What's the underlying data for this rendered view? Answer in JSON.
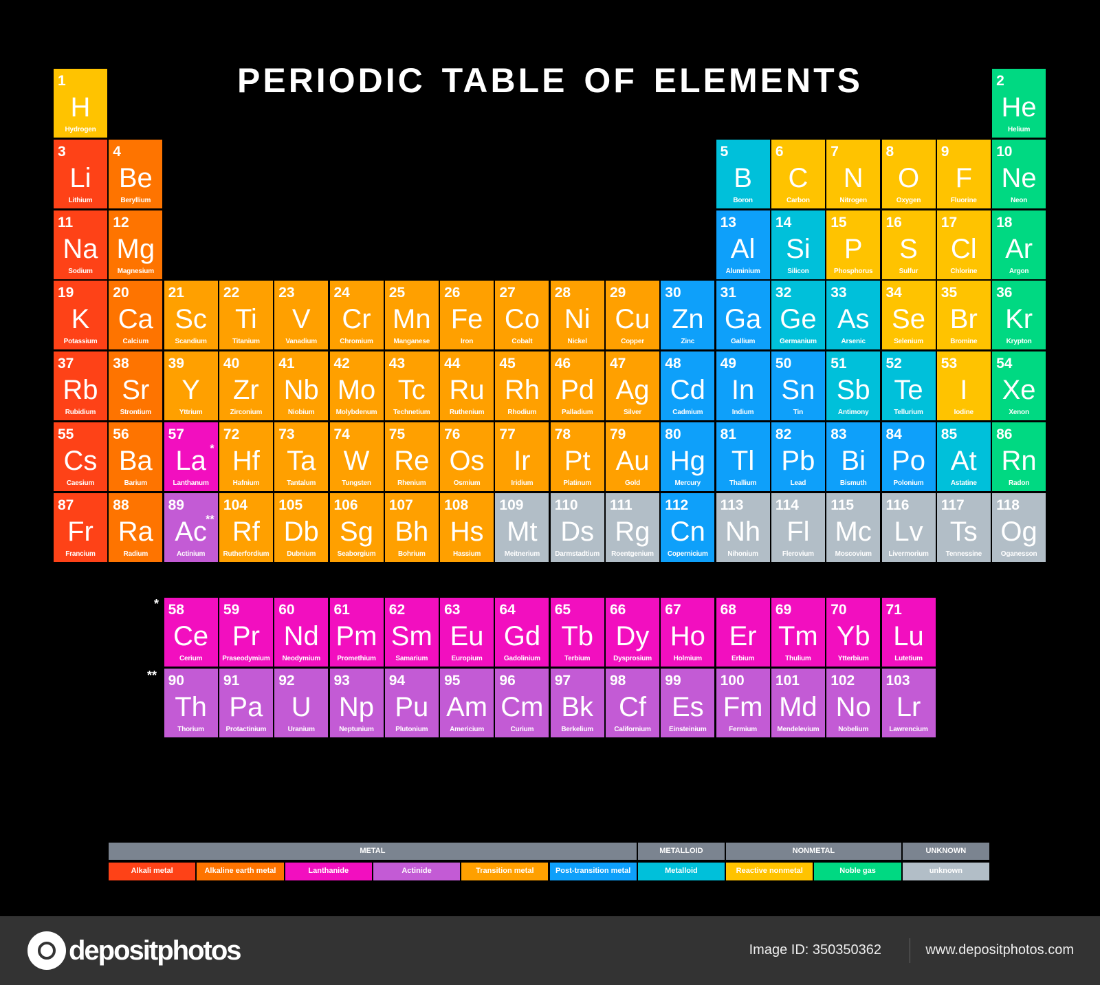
{
  "title": "PERIODIC TABLE OF ELEMENTS",
  "colors": {
    "alkali": "#fe4217",
    "alkaline": "#fe7400",
    "lanthanide": "#f20fbf",
    "actinide": "#c35bd5",
    "transition": "#ffa000",
    "posttransition": "#0ea0fa",
    "metalloid": "#00c0da",
    "nonmetal": "#ffc300",
    "noble": "#00d982",
    "unknown": "#b2bec7",
    "legend_header": "#7b8490"
  },
  "markers": {
    "lanthanum": "*",
    "actinium": "**"
  },
  "elements": [
    [
      1,
      "H",
      "Hydrogen",
      "nonmetal"
    ],
    [
      2,
      "He",
      "Helium",
      "noble"
    ],
    [
      3,
      "Li",
      "Lithium",
      "alkali"
    ],
    [
      4,
      "Be",
      "Beryllium",
      "alkaline"
    ],
    [
      5,
      "B",
      "Boron",
      "metalloid"
    ],
    [
      6,
      "C",
      "Carbon",
      "nonmetal"
    ],
    [
      7,
      "N",
      "Nitrogen",
      "nonmetal"
    ],
    [
      8,
      "O",
      "Oxygen",
      "nonmetal"
    ],
    [
      9,
      "F",
      "Fluorine",
      "nonmetal"
    ],
    [
      10,
      "Ne",
      "Neon",
      "noble"
    ],
    [
      11,
      "Na",
      "Sodium",
      "alkali"
    ],
    [
      12,
      "Mg",
      "Magnesium",
      "alkaline"
    ],
    [
      13,
      "Al",
      "Aluminium",
      "posttransition"
    ],
    [
      14,
      "Si",
      "Silicon",
      "metalloid"
    ],
    [
      15,
      "P",
      "Phosphorus",
      "nonmetal"
    ],
    [
      16,
      "S",
      "Sulfur",
      "nonmetal"
    ],
    [
      17,
      "Cl",
      "Chlorine",
      "nonmetal"
    ],
    [
      18,
      "Ar",
      "Argon",
      "noble"
    ],
    [
      19,
      "K",
      "Potassium",
      "alkali"
    ],
    [
      20,
      "Ca",
      "Calcium",
      "alkaline"
    ],
    [
      21,
      "Sc",
      "Scandium",
      "transition"
    ],
    [
      22,
      "Ti",
      "Titanium",
      "transition"
    ],
    [
      23,
      "V",
      "Vanadium",
      "transition"
    ],
    [
      24,
      "Cr",
      "Chromium",
      "transition"
    ],
    [
      25,
      "Mn",
      "Manganese",
      "transition"
    ],
    [
      26,
      "Fe",
      "Iron",
      "transition"
    ],
    [
      27,
      "Co",
      "Cobalt",
      "transition"
    ],
    [
      28,
      "Ni",
      "Nickel",
      "transition"
    ],
    [
      29,
      "Cu",
      "Copper",
      "transition"
    ],
    [
      30,
      "Zn",
      "Zinc",
      "posttransition"
    ],
    [
      31,
      "Ga",
      "Gallium",
      "posttransition"
    ],
    [
      32,
      "Ge",
      "Germanium",
      "metalloid"
    ],
    [
      33,
      "As",
      "Arsenic",
      "metalloid"
    ],
    [
      34,
      "Se",
      "Selenium",
      "nonmetal"
    ],
    [
      35,
      "Br",
      "Bromine",
      "nonmetal"
    ],
    [
      36,
      "Kr",
      "Krypton",
      "noble"
    ],
    [
      37,
      "Rb",
      "Rubidium",
      "alkali"
    ],
    [
      38,
      "Sr",
      "Strontium",
      "alkaline"
    ],
    [
      39,
      "Y",
      "Yttrium",
      "transition"
    ],
    [
      40,
      "Zr",
      "Zirconium",
      "transition"
    ],
    [
      41,
      "Nb",
      "Niobium",
      "transition"
    ],
    [
      42,
      "Mo",
      "Molybdenum",
      "transition"
    ],
    [
      43,
      "Tc",
      "Technetium",
      "transition"
    ],
    [
      44,
      "Ru",
      "Ruthenium",
      "transition"
    ],
    [
      45,
      "Rh",
      "Rhodium",
      "transition"
    ],
    [
      46,
      "Pd",
      "Palladium",
      "transition"
    ],
    [
      47,
      "Ag",
      "Silver",
      "transition"
    ],
    [
      48,
      "Cd",
      "Cadmium",
      "posttransition"
    ],
    [
      49,
      "In",
      "Indium",
      "posttransition"
    ],
    [
      50,
      "Sn",
      "Tin",
      "posttransition"
    ],
    [
      51,
      "Sb",
      "Antimony",
      "metalloid"
    ],
    [
      52,
      "Te",
      "Tellurium",
      "metalloid"
    ],
    [
      53,
      "I",
      "Iodine",
      "nonmetal"
    ],
    [
      54,
      "Xe",
      "Xenon",
      "noble"
    ],
    [
      55,
      "Cs",
      "Caesium",
      "alkali"
    ],
    [
      56,
      "Ba",
      "Barium",
      "alkaline"
    ],
    [
      57,
      "La",
      "Lanthanum",
      "lanthanide"
    ],
    [
      58,
      "Ce",
      "Cerium",
      "lanthanide"
    ],
    [
      59,
      "Pr",
      "Praseodymium",
      "lanthanide"
    ],
    [
      60,
      "Nd",
      "Neodymium",
      "lanthanide"
    ],
    [
      61,
      "Pm",
      "Promethium",
      "lanthanide"
    ],
    [
      62,
      "Sm",
      "Samarium",
      "lanthanide"
    ],
    [
      63,
      "Eu",
      "Europium",
      "lanthanide"
    ],
    [
      64,
      "Gd",
      "Gadolinium",
      "lanthanide"
    ],
    [
      65,
      "Tb",
      "Terbium",
      "lanthanide"
    ],
    [
      66,
      "Dy",
      "Dysprosium",
      "lanthanide"
    ],
    [
      67,
      "Ho",
      "Holmium",
      "lanthanide"
    ],
    [
      68,
      "Er",
      "Erbium",
      "lanthanide"
    ],
    [
      69,
      "Tm",
      "Thulium",
      "lanthanide"
    ],
    [
      70,
      "Yb",
      "Ytterbium",
      "lanthanide"
    ],
    [
      71,
      "Lu",
      "Lutetium",
      "lanthanide"
    ],
    [
      72,
      "Hf",
      "Hafnium",
      "transition"
    ],
    [
      73,
      "Ta",
      "Tantalum",
      "transition"
    ],
    [
      74,
      "W",
      "Tungsten",
      "transition"
    ],
    [
      75,
      "Re",
      "Rhenium",
      "transition"
    ],
    [
      76,
      "Os",
      "Osmium",
      "transition"
    ],
    [
      77,
      "Ir",
      "Iridium",
      "transition"
    ],
    [
      78,
      "Pt",
      "Platinum",
      "transition"
    ],
    [
      79,
      "Au",
      "Gold",
      "transition"
    ],
    [
      80,
      "Hg",
      "Mercury",
      "posttransition"
    ],
    [
      81,
      "Tl",
      "Thallium",
      "posttransition"
    ],
    [
      82,
      "Pb",
      "Lead",
      "posttransition"
    ],
    [
      83,
      "Bi",
      "Bismuth",
      "posttransition"
    ],
    [
      84,
      "Po",
      "Polonium",
      "posttransition"
    ],
    [
      85,
      "At",
      "Astatine",
      "metalloid"
    ],
    [
      86,
      "Rn",
      "Radon",
      "noble"
    ],
    [
      87,
      "Fr",
      "Francium",
      "alkali"
    ],
    [
      88,
      "Ra",
      "Radium",
      "alkaline"
    ],
    [
      89,
      "Ac",
      "Actinium",
      "actinide"
    ],
    [
      90,
      "Th",
      "Thorium",
      "actinide"
    ],
    [
      91,
      "Pa",
      "Protactinium",
      "actinide"
    ],
    [
      92,
      "U",
      "Uranium",
      "actinide"
    ],
    [
      93,
      "Np",
      "Neptunium",
      "actinide"
    ],
    [
      94,
      "Pu",
      "Plutonium",
      "actinide"
    ],
    [
      95,
      "Am",
      "Americium",
      "actinide"
    ],
    [
      96,
      "Cm",
      "Curium",
      "actinide"
    ],
    [
      97,
      "Bk",
      "Berkelium",
      "actinide"
    ],
    [
      98,
      "Cf",
      "Californium",
      "actinide"
    ],
    [
      99,
      "Es",
      "Einsteinium",
      "actinide"
    ],
    [
      100,
      "Fm",
      "Fermium",
      "actinide"
    ],
    [
      101,
      "Md",
      "Mendelevium",
      "actinide"
    ],
    [
      102,
      "No",
      "Nobelium",
      "actinide"
    ],
    [
      103,
      "Lr",
      "Lawrencium",
      "actinide"
    ],
    [
      104,
      "Rf",
      "Rutherfordium",
      "transition"
    ],
    [
      105,
      "Db",
      "Dubnium",
      "transition"
    ],
    [
      106,
      "Sg",
      "Seaborgium",
      "transition"
    ],
    [
      107,
      "Bh",
      "Bohrium",
      "transition"
    ],
    [
      108,
      "Hs",
      "Hassium",
      "transition"
    ],
    [
      109,
      "Mt",
      "Meitnerium",
      "unknown"
    ],
    [
      110,
      "Ds",
      "Darmstadtium",
      "unknown"
    ],
    [
      111,
      "Rg",
      "Roentgenium",
      "unknown"
    ],
    [
      112,
      "Cn",
      "Copernicium",
      "posttransition"
    ],
    [
      113,
      "Nh",
      "Nihonium",
      "unknown"
    ],
    [
      114,
      "Fl",
      "Flerovium",
      "unknown"
    ],
    [
      115,
      "Mc",
      "Moscovium",
      "unknown"
    ],
    [
      116,
      "Lv",
      "Livermorium",
      "unknown"
    ],
    [
      117,
      "Ts",
      "Tennessine",
      "unknown"
    ],
    [
      118,
      "Og",
      "Oganesson",
      "unknown"
    ]
  ],
  "legend": {
    "groups": [
      {
        "label": "METAL",
        "span": 6
      },
      {
        "label": "METALLOID",
        "span": 1
      },
      {
        "label": "NONMETAL",
        "span": 2
      },
      {
        "label": "UNKNOWN",
        "span": 1
      }
    ],
    "categories": [
      {
        "key": "alkali",
        "label": "Alkali metal"
      },
      {
        "key": "alkaline",
        "label": "Alkaline earth metal"
      },
      {
        "key": "lanthanide",
        "label": "Lanthanide"
      },
      {
        "key": "actinide",
        "label": "Actinide"
      },
      {
        "key": "transition",
        "label": "Transition metal"
      },
      {
        "key": "posttransition",
        "label": "Post-transition metal"
      },
      {
        "key": "metalloid",
        "label": "Metalloid"
      },
      {
        "key": "nonmetal",
        "label": "Reactive nonmetal"
      },
      {
        "key": "noble",
        "label": "Noble gas"
      },
      {
        "key": "unknown",
        "label": "unknown"
      }
    ]
  },
  "footer": {
    "logo_text": "depositphotos",
    "image_id": "Image ID: 350350362",
    "site": "www.depositphotos.com"
  }
}
